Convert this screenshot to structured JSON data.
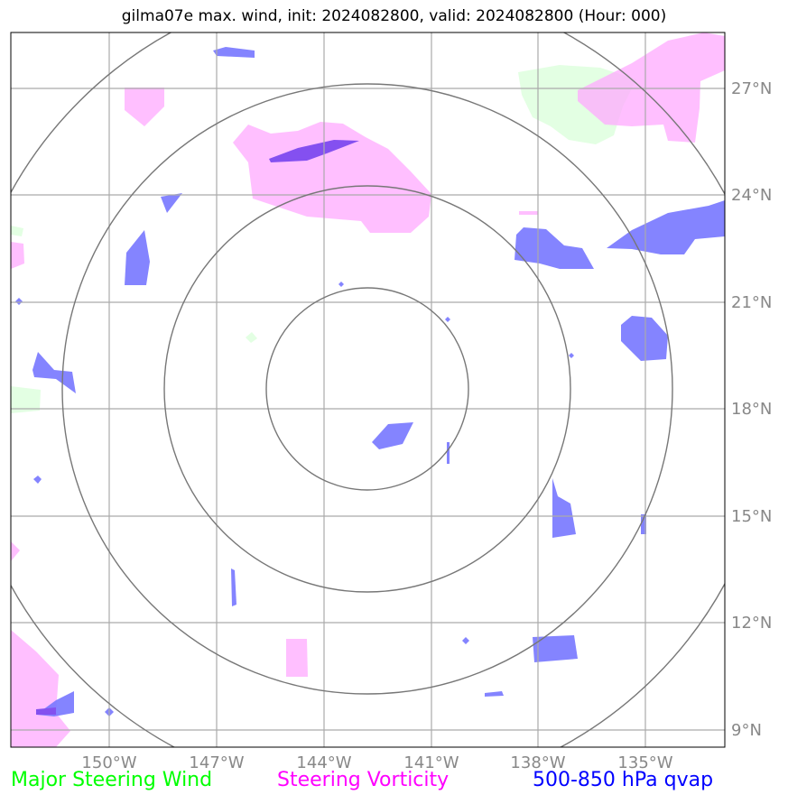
{
  "title": "gilma07e max. wind, init: 2024082800, valid: 2024082800 (Hour: 000)",
  "lon_ticks": [
    "150°W",
    "147°W",
    "144°W",
    "141°W",
    "138°W",
    "135°W"
  ],
  "lat_ticks": [
    "27°N",
    "24°N",
    "21°N",
    "18°N",
    "15°N",
    "12°N",
    "9°N"
  ],
  "legend": {
    "wind": {
      "label": "Major Steering Wind",
      "color": "#00ff00"
    },
    "vorticity": {
      "label": "Steering Vorticity",
      "color": "#ff00ff"
    },
    "qvap": {
      "label": "500-850 hPa qvap",
      "color": "#0000ff"
    }
  },
  "colors": {
    "wind_fill": "#ccffcc",
    "vorticity_fill": "#ffaaff",
    "qvap_fill": "#7777ff",
    "qvap_strong_fill": "#7744ee",
    "grid": "#aaaaaa",
    "range_rings": "#777777",
    "tick_label": "#888888"
  }
}
